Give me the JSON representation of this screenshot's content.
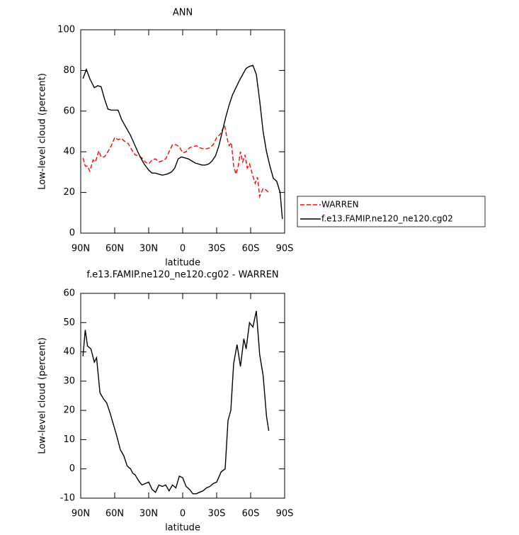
{
  "chart_data": [
    {
      "type": "line",
      "title": "ANN",
      "xlabel": "latitude",
      "ylabel": "Low-level cloud (percent)",
      "xlim": [
        90,
        -90
      ],
      "ylim": [
        0,
        100
      ],
      "xticks": [
        {
          "value": 90,
          "label": "90N"
        },
        {
          "value": 60,
          "label": "60N"
        },
        {
          "value": 30,
          "label": "30N"
        },
        0,
        {
          "value": -30,
          "label": "30S"
        },
        {
          "value": -60,
          "label": "60S"
        },
        {
          "value": -90,
          "label": "90S"
        }
      ],
      "yticks": [
        0,
        20,
        40,
        60,
        80,
        100
      ],
      "legend": "outside-right",
      "series": [
        {
          "name": "WARREN",
          "color": "#ff0000",
          "dash": true,
          "x": [
            88,
            86,
            84,
            82,
            79,
            77,
            74,
            72,
            69,
            66,
            63,
            60,
            57,
            54,
            51,
            48,
            45,
            42,
            39,
            36,
            33,
            30,
            27,
            24,
            21,
            18,
            15,
            12,
            9,
            6,
            3,
            0,
            -3,
            -6,
            -9,
            -12,
            -15,
            -18,
            -21,
            -24,
            -27,
            -30,
            -33,
            -37,
            -39,
            -41,
            -43,
            -45,
            -47,
            -49,
            -51,
            -53,
            -55,
            -57,
            -59,
            -62,
            -64,
            -66,
            -68,
            -71,
            -74,
            -76
          ],
          "values": [
            37,
            33,
            33,
            30.5,
            36,
            35,
            40.5,
            37.5,
            37.5,
            40,
            43,
            47,
            46,
            46.5,
            45,
            44,
            41,
            38.5,
            38,
            37,
            35,
            34,
            36,
            36.5,
            35,
            35.5,
            36.5,
            40,
            43.5,
            43.5,
            42.5,
            39.5,
            40,
            42,
            42.5,
            43,
            42,
            41.5,
            41.5,
            42,
            43.5,
            47,
            48.5,
            53,
            47,
            43,
            44.5,
            33,
            29,
            33,
            40,
            35,
            38.5,
            32,
            34,
            28,
            24.5,
            27.5,
            18,
            22,
            21,
            20
          ]
        },
        {
          "name": "f.e13.FAMIP.ne120_ne120.cg02",
          "color": "#000000",
          "dash": false,
          "x": [
            88,
            85,
            82,
            78,
            75,
            72,
            69,
            66,
            63,
            60,
            57,
            54,
            50,
            46,
            42,
            38,
            34,
            30,
            27,
            24,
            21,
            18,
            14,
            10,
            7,
            4,
            1,
            -2,
            -5,
            -8,
            -11,
            -14,
            -17,
            -20,
            -23,
            -26,
            -29,
            -32,
            -35,
            -38,
            -41,
            -44,
            -47,
            -50,
            -53,
            -56,
            -59,
            -62,
            -65,
            -68,
            -71,
            -74,
            -77,
            -80,
            -83,
            -86,
            -88
          ],
          "values": [
            76,
            80.5,
            76,
            71.5,
            72.5,
            72,
            66,
            61,
            60.5,
            60.5,
            60.5,
            56,
            52,
            48,
            43,
            38,
            34,
            31,
            29.5,
            29.5,
            29,
            28.5,
            29,
            30,
            32,
            36.5,
            37.5,
            37,
            36.5,
            35.5,
            34.5,
            34,
            33.5,
            33.5,
            34,
            35.5,
            38,
            43,
            50,
            57,
            63,
            68,
            71.5,
            75,
            78,
            81,
            82,
            82.5,
            78,
            65,
            50,
            40,
            33,
            27,
            25.5,
            20,
            7
          ]
        }
      ]
    },
    {
      "type": "line",
      "title": "f.e13.FAMIP.ne120_ne120.cg02 - WARREN",
      "xlabel": "latitude",
      "ylabel": "Low-level cloud (percent)",
      "xlim": [
        90,
        -90
      ],
      "ylim": [
        -10,
        60
      ],
      "xticks": [
        {
          "value": 90,
          "label": "90N"
        },
        {
          "value": 60,
          "label": "60N"
        },
        {
          "value": 30,
          "label": "30N"
        },
        0,
        {
          "value": -30,
          "label": "30S"
        },
        {
          "value": -60,
          "label": "60S"
        },
        {
          "value": -90,
          "label": "90S"
        }
      ],
      "yticks": [
        -10,
        0,
        10,
        20,
        30,
        40,
        50,
        60
      ],
      "color": "#000000",
      "x": [
        88,
        86,
        84,
        81,
        78,
        76,
        73,
        70,
        67,
        64,
        61,
        58,
        55,
        52,
        49,
        46,
        44,
        42,
        39,
        36,
        33,
        30,
        27,
        24,
        21,
        18,
        15,
        12,
        9,
        6,
        3,
        0,
        -3,
        -6,
        -9,
        -12,
        -15,
        -18,
        -21,
        -24,
        -27,
        -30,
        -34,
        -37.5,
        -40,
        -42.5,
        -45,
        -48,
        -51,
        -54,
        -56,
        -59,
        -62,
        -65,
        -68,
        -71,
        -74,
        -76
      ],
      "values": [
        38.5,
        47.5,
        42,
        41,
        36.5,
        38,
        26,
        24,
        22.5,
        19,
        15,
        11,
        6.5,
        4.5,
        1,
        0,
        -1.5,
        -2,
        -4,
        -5.5,
        -5,
        -4.5,
        -7,
        -8,
        -5.5,
        -6,
        -5.5,
        -7.5,
        -5.5,
        -6.5,
        -2.5,
        -3,
        -6,
        -7,
        -8.5,
        -8.5,
        -8,
        -7.5,
        -6.5,
        -6,
        -5,
        -4.5,
        -1,
        0,
        16.5,
        20,
        36,
        42.5,
        35,
        44.5,
        41,
        50,
        48.5,
        54,
        39,
        32,
        18,
        13
      ]
    }
  ]
}
